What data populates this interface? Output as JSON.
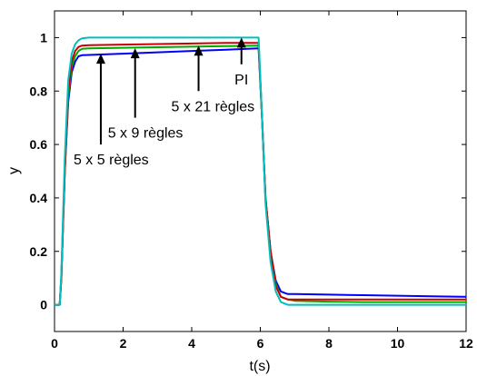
{
  "chart_data": {
    "type": "line",
    "title": "",
    "xlabel": "t(s)",
    "ylabel": "y",
    "xlim": [
      0,
      12
    ],
    "ylim": [
      -0.1,
      1.1
    ],
    "xticks": [
      0,
      2,
      4,
      6,
      8,
      10,
      12
    ],
    "yticks": [
      0,
      0.2,
      0.4,
      0.6,
      0.8,
      1
    ],
    "grid": false,
    "legend": "none",
    "series": [
      {
        "color": "#0000ff",
        "x": [
          0,
          0.15,
          0.2,
          0.3,
          0.4,
          0.5,
          0.6,
          0.7,
          0.8,
          1,
          2,
          3,
          4,
          5,
          5.95,
          6.05,
          6.15,
          6.3,
          6.45,
          6.6,
          6.8,
          7,
          8,
          9,
          10,
          11,
          12
        ],
        "y": [
          0,
          0,
          0.1,
          0.5,
          0.76,
          0.87,
          0.91,
          0.93,
          0.934,
          0.935,
          0.94,
          0.945,
          0.95,
          0.955,
          0.96,
          0.7,
          0.4,
          0.2,
          0.09,
          0.05,
          0.04,
          0.04,
          0.038,
          0.036,
          0.034,
          0.032,
          0.03
        ]
      },
      {
        "color": "#00aa00",
        "x": [
          0,
          0.15,
          0.2,
          0.3,
          0.4,
          0.5,
          0.6,
          0.7,
          0.8,
          1,
          2,
          3,
          4,
          5,
          5.95,
          6.05,
          6.15,
          6.3,
          6.45,
          6.6,
          6.8,
          7,
          8,
          9,
          10,
          11,
          12
        ],
        "y": [
          0,
          0,
          0.1,
          0.5,
          0.78,
          0.89,
          0.93,
          0.95,
          0.958,
          0.96,
          0.962,
          0.964,
          0.966,
          0.968,
          0.97,
          0.7,
          0.4,
          0.2,
          0.08,
          0.03,
          0.02,
          0.015,
          0.012,
          0.01,
          0.01,
          0.01,
          0.01
        ]
      },
      {
        "color": "#cc0000",
        "x": [
          0,
          0.15,
          0.2,
          0.3,
          0.4,
          0.5,
          0.6,
          0.7,
          0.8,
          1,
          2,
          3,
          4,
          5,
          5.95,
          6.05,
          6.15,
          6.3,
          6.45,
          6.6,
          6.8,
          7,
          8,
          9,
          10,
          11,
          12
        ],
        "y": [
          0,
          0,
          0.1,
          0.5,
          0.8,
          0.91,
          0.95,
          0.965,
          0.97,
          0.972,
          0.974,
          0.976,
          0.978,
          0.98,
          0.98,
          0.7,
          0.4,
          0.2,
          0.07,
          0.03,
          0.02,
          0.02,
          0.02,
          0.02,
          0.02,
          0.02,
          0.02
        ]
      },
      {
        "color": "#00bfbf",
        "x": [
          0,
          0.15,
          0.2,
          0.3,
          0.4,
          0.5,
          0.6,
          0.7,
          0.8,
          1,
          2,
          3,
          4,
          5,
          5.95,
          6.05,
          6.15,
          6.3,
          6.45,
          6.6,
          6.8,
          7,
          8,
          9,
          10,
          11,
          12
        ],
        "y": [
          0,
          0,
          0.12,
          0.55,
          0.84,
          0.94,
          0.975,
          0.99,
          0.997,
          1,
          1,
          1,
          1,
          1,
          1,
          0.7,
          0.38,
          0.16,
          0.05,
          0.01,
          0,
          0,
          0,
          0,
          0,
          0,
          0
        ]
      }
    ],
    "annotations": [
      {
        "text": "5 x 5 règles",
        "arrow_to": [
          1.35,
          0.94
        ],
        "arrow_from": [
          1.35,
          0.6
        ]
      },
      {
        "text": "5 x 9 règles",
        "arrow_to": [
          2.35,
          0.96
        ],
        "arrow_from": [
          2.35,
          0.7
        ]
      },
      {
        "text": "5 x 21 règles",
        "arrow_to": [
          4.2,
          0.97
        ],
        "arrow_from": [
          4.2,
          0.8
        ]
      },
      {
        "text": "PI",
        "arrow_to": [
          5.45,
          1.0
        ],
        "arrow_from": [
          5.45,
          0.9
        ]
      }
    ]
  }
}
